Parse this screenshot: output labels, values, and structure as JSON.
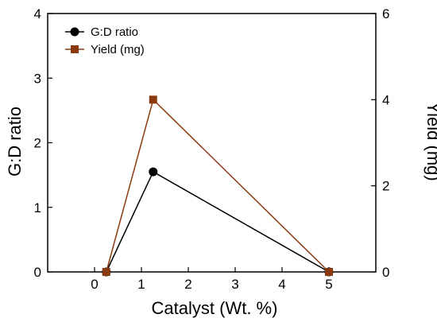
{
  "chart_data": {
    "type": "line",
    "xlabel": "Catalyst (Wt. %)",
    "ylabel": "G:D ratio",
    "y2label": "Yield (mg)",
    "xlim": [
      -1.0,
      6.0
    ],
    "ylim": [
      0,
      4
    ],
    "y2lim": [
      0,
      6
    ],
    "xticks": [
      0,
      1,
      2,
      3,
      4,
      5
    ],
    "yticks": [
      0,
      1,
      2,
      3,
      4
    ],
    "y2ticks": [
      0,
      2,
      4,
      6
    ],
    "legend_position": "top-left",
    "series": [
      {
        "name": "G:D ratio",
        "axis": "left",
        "marker": "circle",
        "color": "#000000",
        "x": [
          0.25,
          1.25,
          5.0
        ],
        "y": [
          0.0,
          1.55,
          0.0
        ]
      },
      {
        "name": "Yield (mg)",
        "axis": "right",
        "marker": "square",
        "color": "#8B3A10",
        "x": [
          0.25,
          1.25,
          5.0
        ],
        "y": [
          0.0,
          4.0,
          0.0
        ]
      }
    ]
  }
}
